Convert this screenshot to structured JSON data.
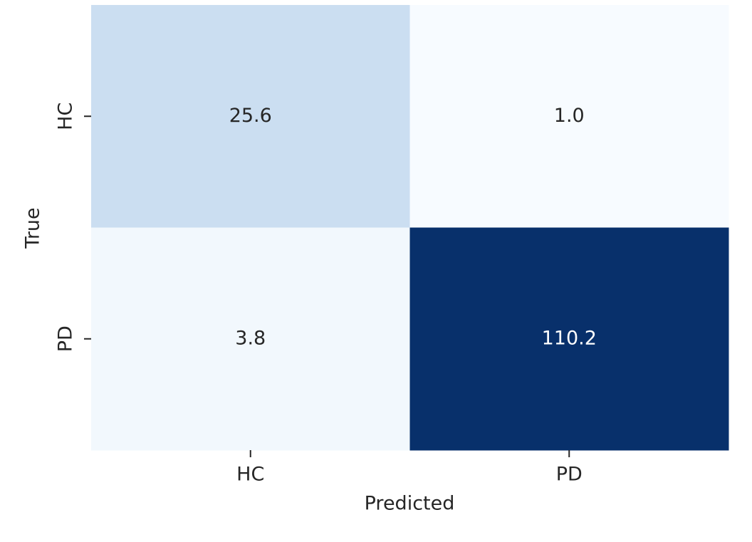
{
  "chart_data": {
    "type": "heatmap",
    "x_categories": [
      "HC",
      "PD"
    ],
    "y_categories": [
      "HC",
      "PD"
    ],
    "values": [
      [
        25.6,
        1.0
      ],
      [
        3.8,
        110.2
      ]
    ],
    "value_labels": [
      [
        "25.6",
        "1.0"
      ],
      [
        "3.8",
        "110.2"
      ]
    ],
    "xlabel": "Predicted",
    "ylabel": "True",
    "colormap": "Blues"
  }
}
